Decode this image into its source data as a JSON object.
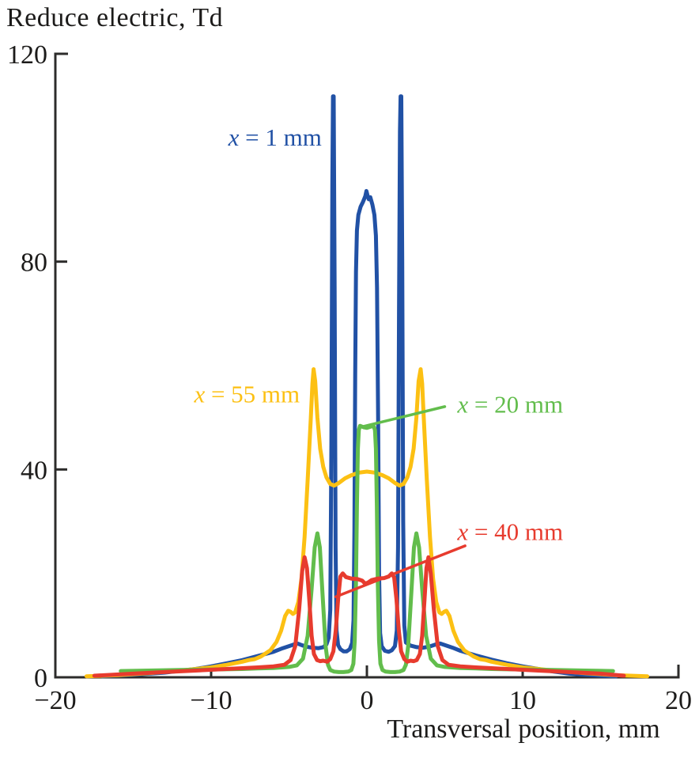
{
  "chart_data": {
    "type": "line",
    "title": "Reduce electric, Td",
    "xlabel": "Transversal position, mm",
    "ylabel": "Reduce electric, Td",
    "xlim": [
      -20,
      20
    ],
    "ylim": [
      0,
      120
    ],
    "xticks": [
      {
        "v": -20,
        "label": "−20"
      },
      {
        "v": -10,
        "label": "−10"
      },
      {
        "v": 0,
        "label": "0"
      },
      {
        "v": 10,
        "label": "10"
      },
      {
        "v": 20,
        "label": "20"
      }
    ],
    "yticks": [
      {
        "v": 0,
        "label": "0"
      },
      {
        "v": 40,
        "label": "40"
      },
      {
        "v": 80,
        "label": "80"
      },
      {
        "v": 120,
        "label": "120"
      }
    ],
    "grid": false,
    "legend_position": "inline-annotations",
    "axis_color": "#2d2c2b",
    "series": [
      {
        "id": "x1mm",
        "name": "x = 1 mm",
        "color": "#2151a5",
        "points": [
          [
            -17,
            0.2
          ],
          [
            -15,
            0.5
          ],
          [
            -13,
            0.9
          ],
          [
            -11,
            1.6
          ],
          [
            -10,
            2.1
          ],
          [
            -9,
            2.7
          ],
          [
            -8,
            3.3
          ],
          [
            -7,
            4.1
          ],
          [
            -6,
            4.9
          ],
          [
            -5.4,
            5.6
          ],
          [
            -5,
            6
          ],
          [
            -4.7,
            6.3
          ],
          [
            -4.45,
            6.5
          ],
          [
            -4.2,
            6.2
          ],
          [
            -3.9,
            5.9
          ],
          [
            -3.5,
            5.7
          ],
          [
            -3.1,
            5.6
          ],
          [
            -2.8,
            5.8
          ],
          [
            -2.6,
            6.3
          ],
          [
            -2.45,
            7.6
          ],
          [
            -2.35,
            13
          ],
          [
            -2.28,
            45
          ],
          [
            -2.22,
            95
          ],
          [
            -2.18,
            111.8
          ],
          [
            -2.13,
            111.8
          ],
          [
            -2.07,
            75
          ],
          [
            -2.01,
            25
          ],
          [
            -1.95,
            9
          ],
          [
            -1.85,
            6.2
          ],
          [
            -1.7,
            5.4
          ],
          [
            -1.5,
            5
          ],
          [
            -1.3,
            5
          ],
          [
            -1.1,
            5.4
          ],
          [
            -0.95,
            6.6
          ],
          [
            -0.86,
            11
          ],
          [
            -0.8,
            28
          ],
          [
            -0.75,
            58
          ],
          [
            -0.7,
            78
          ],
          [
            -0.64,
            86
          ],
          [
            -0.55,
            89
          ],
          [
            -0.4,
            90.6
          ],
          [
            -0.25,
            91.5
          ],
          [
            -0.1,
            92.6
          ],
          [
            -0.03,
            93.6
          ],
          [
            0.05,
            92.6
          ],
          [
            0.12,
            92
          ],
          [
            0.22,
            92.4
          ],
          [
            0.35,
            91
          ],
          [
            0.48,
            89
          ],
          [
            0.58,
            85
          ],
          [
            0.65,
            75
          ],
          [
            0.72,
            50
          ],
          [
            0.78,
            20
          ],
          [
            0.85,
            8.5
          ],
          [
            0.95,
            6
          ],
          [
            1.15,
            5.1
          ],
          [
            1.4,
            4.9
          ],
          [
            1.6,
            5.2
          ],
          [
            1.8,
            6
          ],
          [
            1.92,
            9
          ],
          [
            2,
            25
          ],
          [
            2.06,
            70
          ],
          [
            2.12,
            105
          ],
          [
            2.16,
            111.8
          ],
          [
            2.21,
            111.8
          ],
          [
            2.27,
            80
          ],
          [
            2.33,
            30
          ],
          [
            2.4,
            10
          ],
          [
            2.5,
            6.7
          ],
          [
            2.8,
            6.1
          ],
          [
            3.2,
            5.8
          ],
          [
            3.6,
            5.7
          ],
          [
            4,
            5.9
          ],
          [
            4.4,
            6.3
          ],
          [
            4.7,
            6.5
          ],
          [
            5,
            6.2
          ],
          [
            5.5,
            5.7
          ],
          [
            6,
            5.1
          ],
          [
            7,
            4.2
          ],
          [
            8,
            3.4
          ],
          [
            9,
            2.7
          ],
          [
            10,
            2.1
          ],
          [
            11,
            1.6
          ],
          [
            12,
            1.1
          ],
          [
            13,
            0.7
          ],
          [
            14,
            0.5
          ],
          [
            15,
            0.3
          ],
          [
            16,
            0.2
          ]
        ]
      },
      {
        "id": "x55mm",
        "name": "x = 55 mm",
        "color": "#fcc013",
        "points": [
          [
            -18,
            0.2
          ],
          [
            -16,
            0.4
          ],
          [
            -14,
            0.8
          ],
          [
            -12,
            1.3
          ],
          [
            -10,
            1.9
          ],
          [
            -9,
            2.4
          ],
          [
            -8,
            3
          ],
          [
            -7.6,
            3.3
          ],
          [
            -7.2,
            3.5
          ],
          [
            -6.8,
            4
          ],
          [
            -6.2,
            5.2
          ],
          [
            -5.8,
            6.8
          ],
          [
            -5.5,
            9
          ],
          [
            -5.25,
            11.8
          ],
          [
            -5.05,
            12.8
          ],
          [
            -4.9,
            12.6
          ],
          [
            -4.75,
            12.2
          ],
          [
            -4.6,
            12.5
          ],
          [
            -4.4,
            14.5
          ],
          [
            -4.2,
            19
          ],
          [
            -4,
            27
          ],
          [
            -3.8,
            38
          ],
          [
            -3.6,
            50
          ],
          [
            -3.5,
            56.5
          ],
          [
            -3.42,
            59.3
          ],
          [
            -3.32,
            57
          ],
          [
            -3.18,
            50
          ],
          [
            -3,
            44
          ],
          [
            -2.8,
            40.5
          ],
          [
            -2.6,
            38.5
          ],
          [
            -2.35,
            37.2
          ],
          [
            -2.1,
            36.9
          ],
          [
            -1.8,
            37.4
          ],
          [
            -1.4,
            38.3
          ],
          [
            -1,
            38.9
          ],
          [
            -0.5,
            39.4
          ],
          [
            0,
            39.6
          ],
          [
            0.5,
            39.4
          ],
          [
            1,
            38.9
          ],
          [
            1.4,
            38.3
          ],
          [
            1.8,
            37.4
          ],
          [
            2.1,
            36.9
          ],
          [
            2.35,
            37.2
          ],
          [
            2.6,
            38.5
          ],
          [
            2.8,
            40.5
          ],
          [
            3,
            44
          ],
          [
            3.18,
            50
          ],
          [
            3.32,
            57
          ],
          [
            3.45,
            59.3
          ],
          [
            3.55,
            56.5
          ],
          [
            3.65,
            50
          ],
          [
            3.85,
            38
          ],
          [
            4.05,
            27
          ],
          [
            4.25,
            19
          ],
          [
            4.45,
            14.5
          ],
          [
            4.65,
            12.5
          ],
          [
            4.8,
            12.2
          ],
          [
            4.95,
            12.6
          ],
          [
            5.1,
            12.8
          ],
          [
            5.3,
            11.8
          ],
          [
            5.55,
            9
          ],
          [
            5.85,
            6.8
          ],
          [
            6.25,
            5.2
          ],
          [
            6.85,
            4
          ],
          [
            7.25,
            3.5
          ],
          [
            7.65,
            3.3
          ],
          [
            8,
            3
          ],
          [
            9,
            2.4
          ],
          [
            10,
            1.9
          ],
          [
            12,
            1.3
          ],
          [
            14,
            0.8
          ],
          [
            16,
            0.4
          ],
          [
            18,
            0.2
          ]
        ]
      },
      {
        "id": "x20mm",
        "name": "x = 20 mm",
        "color": "#62bd4c",
        "points": [
          [
            -15.8,
            1.2
          ],
          [
            -14,
            1.3
          ],
          [
            -12,
            1.4
          ],
          [
            -10,
            1.5
          ],
          [
            -8,
            1.6
          ],
          [
            -7,
            1.7
          ],
          [
            -6,
            1.8
          ],
          [
            -5,
            2
          ],
          [
            -4.5,
            2.3
          ],
          [
            -4.1,
            3.6
          ],
          [
            -3.8,
            8
          ],
          [
            -3.55,
            17
          ],
          [
            -3.35,
            25
          ],
          [
            -3.18,
            27.7
          ],
          [
            -3.02,
            25
          ],
          [
            -2.85,
            16
          ],
          [
            -2.65,
            6
          ],
          [
            -2.5,
            2.4
          ],
          [
            -2.35,
            1.4
          ],
          [
            -2.1,
            1.1
          ],
          [
            -1.8,
            1
          ],
          [
            -1.5,
            1
          ],
          [
            -1.2,
            1.1
          ],
          [
            -1,
            1.4
          ],
          [
            -0.87,
            2.6
          ],
          [
            -0.78,
            7
          ],
          [
            -0.7,
            18
          ],
          [
            -0.64,
            33
          ],
          [
            -0.58,
            44
          ],
          [
            -0.52,
            47.6
          ],
          [
            -0.44,
            48.4
          ],
          [
            -0.2,
            48.1
          ],
          [
            0,
            48
          ],
          [
            0.2,
            48.2
          ],
          [
            0.42,
            48.4
          ],
          [
            0.52,
            47.6
          ],
          [
            0.58,
            44
          ],
          [
            0.64,
            33
          ],
          [
            0.7,
            18
          ],
          [
            0.78,
            7
          ],
          [
            0.87,
            2.6
          ],
          [
            1,
            1.4
          ],
          [
            1.2,
            1.1
          ],
          [
            1.5,
            1
          ],
          [
            1.8,
            1
          ],
          [
            2.1,
            1.1
          ],
          [
            2.35,
            1.4
          ],
          [
            2.5,
            2.4
          ],
          [
            2.65,
            6
          ],
          [
            2.85,
            16
          ],
          [
            3.02,
            25
          ],
          [
            3.18,
            27.7
          ],
          [
            3.35,
            25
          ],
          [
            3.55,
            17
          ],
          [
            3.8,
            8
          ],
          [
            4.1,
            3.6
          ],
          [
            4.5,
            2.3
          ],
          [
            5,
            2
          ],
          [
            6,
            1.8
          ],
          [
            7,
            1.7
          ],
          [
            8,
            1.6
          ],
          [
            10,
            1.5
          ],
          [
            12,
            1.4
          ],
          [
            14,
            1.3
          ],
          [
            15.8,
            1.2
          ]
        ]
      },
      {
        "id": "x40mm",
        "name": "x = 40 mm",
        "color": "#e73b2e",
        "points": [
          [
            -17.5,
            0.3
          ],
          [
            -15,
            0.7
          ],
          [
            -13,
            1
          ],
          [
            -11,
            1.3
          ],
          [
            -9,
            1.6
          ],
          [
            -7,
            1.9
          ],
          [
            -6,
            2.1
          ],
          [
            -5.3,
            2.4
          ],
          [
            -4.9,
            3.3
          ],
          [
            -4.6,
            6
          ],
          [
            -4.35,
            13
          ],
          [
            -4.15,
            20.5
          ],
          [
            -4,
            23.1
          ],
          [
            -3.85,
            21
          ],
          [
            -3.7,
            15
          ],
          [
            -3.55,
            8
          ],
          [
            -3.4,
            4.5
          ],
          [
            -3.2,
            3.3
          ],
          [
            -3,
            3.1
          ],
          [
            -2.8,
            3.2
          ],
          [
            -2.55,
            3
          ],
          [
            -2.35,
            3.5
          ],
          [
            -2.15,
            5
          ],
          [
            -2,
            9
          ],
          [
            -1.85,
            15
          ],
          [
            -1.7,
            19.4
          ],
          [
            -1.55,
            20
          ],
          [
            -1.35,
            19.3
          ],
          [
            -1,
            19
          ],
          [
            -0.6,
            18.9
          ],
          [
            -0.3,
            18.6
          ],
          [
            -0.1,
            18
          ],
          [
            0.1,
            18.3
          ],
          [
            0.3,
            18.7
          ],
          [
            0.7,
            19
          ],
          [
            1.1,
            19.1
          ],
          [
            1.4,
            19.4
          ],
          [
            1.6,
            20
          ],
          [
            1.75,
            19.2
          ],
          [
            1.9,
            15
          ],
          [
            2.05,
            9
          ],
          [
            2.2,
            5
          ],
          [
            2.4,
            3.5
          ],
          [
            2.6,
            3
          ],
          [
            2.8,
            3.2
          ],
          [
            3,
            3.1
          ],
          [
            3.2,
            3.3
          ],
          [
            3.4,
            4.5
          ],
          [
            3.55,
            8
          ],
          [
            3.7,
            15
          ],
          [
            3.82,
            21
          ],
          [
            3.95,
            23.1
          ],
          [
            4.1,
            20
          ],
          [
            4.3,
            13
          ],
          [
            4.55,
            6
          ],
          [
            4.85,
            3.3
          ],
          [
            5.25,
            2.4
          ],
          [
            6,
            2.1
          ],
          [
            7,
            1.9
          ],
          [
            9,
            1.6
          ],
          [
            11,
            1.3
          ],
          [
            13,
            1
          ],
          [
            15,
            0.7
          ],
          [
            16.5,
            0.3
          ]
        ]
      }
    ],
    "annotations": [
      {
        "id": "label-x1mm",
        "italic": "x",
        "text": " = 1 mm",
        "color": "#2151a5",
        "at": [
          -5.9,
          104.0
        ],
        "leader": null
      },
      {
        "id": "label-x55mm",
        "italic": "x",
        "text": " = 55 mm",
        "color": "#fcc013",
        "at": [
          -7.7,
          54.6
        ],
        "leader": null
      },
      {
        "id": "label-x20mm",
        "italic": "x",
        "text": " = 20 mm",
        "color": "#62bd4c",
        "at": [
          9.2,
          52.6
        ],
        "leader": [
          [
            -0.2,
            48.3
          ],
          [
            5.0,
            52.1
          ]
        ]
      },
      {
        "id": "label-x40mm",
        "italic": "x",
        "text": " = 40 mm",
        "color": "#e73b2e",
        "at": [
          9.2,
          28.1
        ],
        "leader": [
          [
            -2.0,
            15.5
          ],
          [
            6.3,
            25.3
          ]
        ]
      }
    ]
  }
}
